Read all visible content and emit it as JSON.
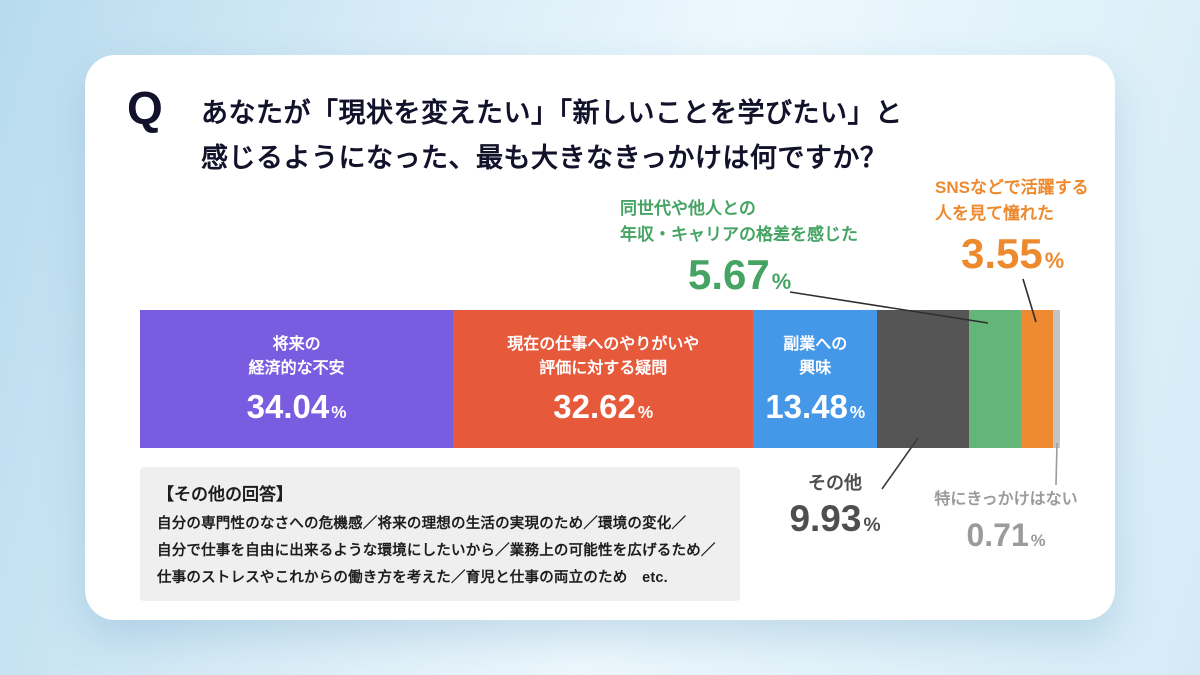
{
  "header": {
    "q_mark": "Q",
    "title_line1": "あなたが「現状を変えたい」「新しいことを学びたい」と",
    "title_line2": "感じるようになった、最も大きなきっかけは何ですか？"
  },
  "chart_data": {
    "type": "bar",
    "variant": "horizontal-stacked-percentage",
    "title": "あなたが「現状を変えたい」「新しいことを学びたい」と感じるようになった、最も大きなきっかけは何ですか？",
    "unit": "%",
    "total": 100,
    "segments": [
      {
        "label": "将来の経済的な不安",
        "label_lines": [
          "将来の",
          "経済的な不安"
        ],
        "value": 34.04,
        "value_label": "34.04",
        "color": "#7A5CE0",
        "callout": "inside"
      },
      {
        "label": "現在の仕事へのやりがいや評価に対する疑問",
        "label_lines": [
          "現在の仕事へのやりがいや",
          "評価に対する疑問"
        ],
        "value": 32.62,
        "value_label": "32.62",
        "color": "#E7593B",
        "callout": "inside"
      },
      {
        "label": "副業への興味",
        "label_lines": [
          "副業への",
          "興味"
        ],
        "value": 13.48,
        "value_label": "13.48",
        "color": "#4598E8",
        "callout": "inside"
      },
      {
        "label": "その他",
        "value": 9.93,
        "value_label": "9.93",
        "color": "#555555",
        "text_color": "#4f4f4f",
        "callout": "below"
      },
      {
        "label": "同世代や他人との年収・キャリアの格差を感じた",
        "label_lines": [
          "同世代や他人との",
          "年収・キャリアの格差を感じた"
        ],
        "value": 5.67,
        "value_label": "5.67",
        "color": "#63B678",
        "text_color": "#45A464",
        "callout": "above"
      },
      {
        "label": "SNSなどで活躍する人を見て憧れた",
        "label_lines": [
          "SNSなどで活躍する",
          "人を見て憧れた"
        ],
        "value": 3.55,
        "value_label": "3.55",
        "color": "#EE8A2F",
        "text_color": "#ED8A2E",
        "callout": "above"
      },
      {
        "label": "特にきっかけはない",
        "value": 0.71,
        "value_label": "0.71",
        "color": "#C4C4C4",
        "text_color": "#9B9B9B",
        "callout": "below"
      }
    ]
  },
  "others_box": {
    "heading": "【その他の回答】",
    "lines": [
      "自分の専門性のなさへの危機感／将来の理想の生活の実現のため／環境の変化／",
      "自分で仕事を自由に出来るような環境にしたいから／業務上の可能性を広げるため／",
      "仕事のストレスやこれからの働き方を考えた／育児と仕事の両立のため　etc."
    ]
  }
}
